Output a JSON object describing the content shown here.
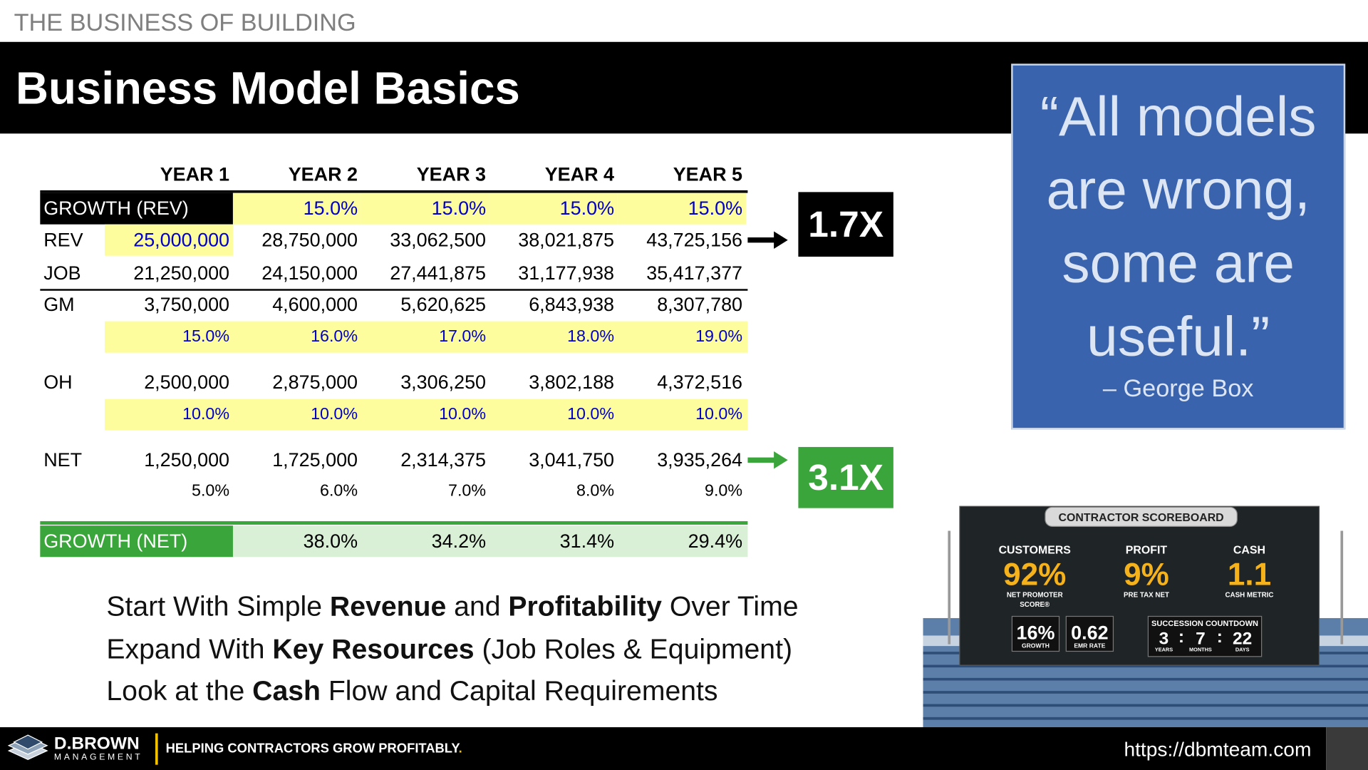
{
  "header": {
    "kicker": "THE BUSINESS OF BUILDING",
    "title": "Business Model Basics"
  },
  "table": {
    "columns": [
      "YEAR 1",
      "YEAR 2",
      "YEAR 3",
      "YEAR 4",
      "YEAR 5"
    ],
    "rows": [
      {
        "label": "GROWTH (REV)",
        "cells": [
          null,
          "15.0%",
          "15.0%",
          "15.0%",
          "15.0%"
        ]
      },
      {
        "label": "REV",
        "cells": [
          "25,000,000",
          "28,750,000",
          "33,062,500",
          "38,021,875",
          "43,725,156"
        ]
      },
      {
        "label": "JOB",
        "cells": [
          "21,250,000",
          "24,150,000",
          "27,441,875",
          "31,177,938",
          "35,417,377"
        ]
      },
      {
        "label": "GM",
        "cells": [
          "3,750,000",
          "4,600,000",
          "5,620,625",
          "6,843,938",
          "8,307,780"
        ]
      },
      {
        "label": null,
        "cells": [
          "15.0%",
          "16.0%",
          "17.0%",
          "18.0%",
          "19.0%"
        ]
      },
      {
        "label": "OH",
        "cells": [
          "2,500,000",
          "2,875,000",
          "3,306,250",
          "3,802,188",
          "4,372,516"
        ]
      },
      {
        "label": null,
        "cells": [
          "10.0%",
          "10.0%",
          "10.0%",
          "10.0%",
          "10.0%"
        ]
      },
      {
        "label": "NET",
        "cells": [
          "1,250,000",
          "1,725,000",
          "2,314,375",
          "3,041,750",
          "3,935,264"
        ]
      },
      {
        "label": null,
        "cells": [
          "5.0%",
          "6.0%",
          "7.0%",
          "8.0%",
          "9.0%"
        ]
      },
      {
        "label": "GROWTH (NET)",
        "cells": [
          null,
          "38.0%",
          "34.2%",
          "31.4%",
          "29.4%"
        ]
      }
    ]
  },
  "callouts": [
    "1.7X",
    "3.1X"
  ],
  "bullets": [
    [
      {
        "text": "Start With Simple ",
        "bold": false
      },
      {
        "text": "Revenue",
        "bold": true
      },
      {
        "text": " and ",
        "bold": false
      },
      {
        "text": "Profitability",
        "bold": true
      },
      {
        "text": " Over Time",
        "bold": false
      }
    ],
    [
      {
        "text": "Expand With ",
        "bold": false
      },
      {
        "text": "Key Resources",
        "bold": true
      },
      {
        "text": " (Job Roles & Equipment)",
        "bold": false
      }
    ],
    [
      {
        "text": "Look at the ",
        "bold": false
      },
      {
        "text": "Cash",
        "bold": true
      },
      {
        "text": " Flow and Capital Requirements",
        "bold": false
      }
    ]
  ],
  "quote": {
    "lines": [
      "“All models",
      "are wrong,",
      "some are",
      "useful.”"
    ],
    "attribution": "– George Box"
  },
  "scoreboard": {
    "title": "CONTRACTOR SCOREBOARD",
    "metrics": [
      {
        "heading": "CUSTOMERS",
        "value": "92%",
        "caption": [
          "NET PROMOTER",
          "SCORE®"
        ]
      },
      {
        "heading": "PROFIT",
        "value": "9%",
        "caption": [
          "PRE TAX NET"
        ]
      },
      {
        "heading": "CASH",
        "value": "1.1",
        "caption": [
          "CASH METRIC"
        ]
      }
    ],
    "small": [
      {
        "value": "16%",
        "caption": "GROWTH"
      },
      {
        "value": "0.62",
        "caption": "EMR RATE"
      }
    ],
    "countdown": {
      "title": "SUCCESSION COUNTDOWN",
      "separator": ":",
      "units": [
        {
          "value": "3",
          "label": "YEARS"
        },
        {
          "value": "7",
          "label": "MONTHS"
        },
        {
          "value": "22",
          "label": "DAYS"
        }
      ]
    }
  },
  "footer": {
    "brand": "D.BROWN",
    "brand_sub": "MANAGEMENT",
    "tagline": "HELPING CONTRACTORS GROW PROFITABLY",
    "tagline_end": ".",
    "url": "https://dbmteam.com"
  }
}
